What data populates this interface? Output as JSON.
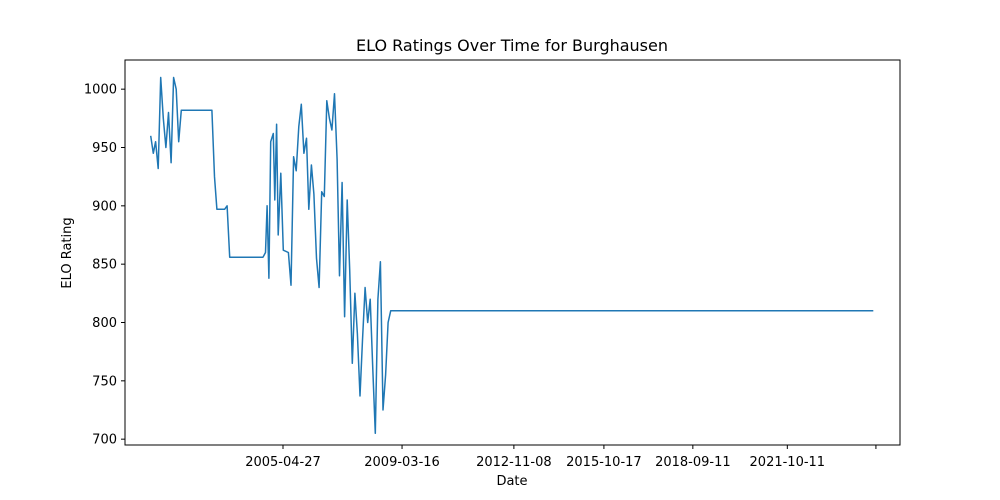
{
  "chart_data": {
    "type": "line",
    "title": "ELO Ratings Over Time for Burghausen",
    "xlabel": "Date",
    "ylabel": "ELO Rating",
    "x_ticks": [
      {
        "date": "2005-04-27",
        "label": "2005-04-27"
      },
      {
        "date": "2009-03-16",
        "label": "2009-03-16"
      },
      {
        "date": "2012-11-08",
        "label": "2012-11-08"
      },
      {
        "date": "2015-10-17",
        "label": "2015-10-17"
      },
      {
        "date": "2018-09-11",
        "label": "2018-09-11"
      },
      {
        "date": "2021-10-11",
        "label": "2021-10-11"
      },
      {
        "date": "2024-09-01",
        "label": ""
      }
    ],
    "y_ticks": [
      700,
      750,
      800,
      850,
      900,
      950,
      1000
    ],
    "xlim": [
      "2000-03-01",
      "2025-06-15"
    ],
    "ylim": [
      695,
      1025
    ],
    "grid": false,
    "colors": {
      "line": "#1f77b4"
    },
    "series": [
      {
        "color": "#1f77b4",
        "points": [
          [
            "2001-01-01",
            960
          ],
          [
            "2001-02-01",
            945
          ],
          [
            "2001-03-01",
            955
          ],
          [
            "2001-04-01",
            932
          ],
          [
            "2001-05-01",
            1010
          ],
          [
            "2001-06-01",
            975
          ],
          [
            "2001-07-01",
            950
          ],
          [
            "2001-08-01",
            980
          ],
          [
            "2001-09-01",
            937
          ],
          [
            "2001-10-01",
            1010
          ],
          [
            "2001-11-01",
            1000
          ],
          [
            "2001-12-01",
            955
          ],
          [
            "2002-01-01",
            982
          ],
          [
            "2002-06-01",
            982
          ],
          [
            "2002-10-01",
            982
          ],
          [
            "2003-01-01",
            982
          ],
          [
            "2003-02-01",
            925
          ],
          [
            "2003-03-01",
            897
          ],
          [
            "2003-06-01",
            897
          ],
          [
            "2003-07-01",
            900
          ],
          [
            "2003-08-01",
            856
          ],
          [
            "2004-09-01",
            856
          ],
          [
            "2004-10-01",
            860
          ],
          [
            "2004-10-20",
            900
          ],
          [
            "2004-11-10",
            838
          ],
          [
            "2004-12-01",
            955
          ],
          [
            "2005-01-01",
            962
          ],
          [
            "2005-01-20",
            905
          ],
          [
            "2005-02-10",
            970
          ],
          [
            "2005-03-01",
            875
          ],
          [
            "2005-04-01",
            928
          ],
          [
            "2005-05-01",
            862
          ],
          [
            "2005-07-01",
            860
          ],
          [
            "2005-08-01",
            832
          ],
          [
            "2005-09-01",
            942
          ],
          [
            "2005-10-01",
            930
          ],
          [
            "2005-11-01",
            968
          ],
          [
            "2005-12-01",
            987
          ],
          [
            "2006-01-01",
            945
          ],
          [
            "2006-02-01",
            958
          ],
          [
            "2006-03-01",
            897
          ],
          [
            "2006-04-01",
            935
          ],
          [
            "2006-05-01",
            910
          ],
          [
            "2006-06-01",
            855
          ],
          [
            "2006-07-01",
            830
          ],
          [
            "2006-08-01",
            912
          ],
          [
            "2006-09-01",
            908
          ],
          [
            "2006-10-01",
            990
          ],
          [
            "2006-11-01",
            975
          ],
          [
            "2006-12-01",
            965
          ],
          [
            "2007-01-01",
            996
          ],
          [
            "2007-02-01",
            940
          ],
          [
            "2007-03-01",
            840
          ],
          [
            "2007-04-01",
            920
          ],
          [
            "2007-05-01",
            805
          ],
          [
            "2007-06-01",
            905
          ],
          [
            "2007-07-01",
            845
          ],
          [
            "2007-08-01",
            765
          ],
          [
            "2007-09-01",
            825
          ],
          [
            "2007-10-01",
            790
          ],
          [
            "2007-11-01",
            737
          ],
          [
            "2007-12-01",
            785
          ],
          [
            "2008-01-01",
            830
          ],
          [
            "2008-02-01",
            800
          ],
          [
            "2008-03-01",
            820
          ],
          [
            "2008-04-01",
            760
          ],
          [
            "2008-05-01",
            705
          ],
          [
            "2008-06-01",
            820
          ],
          [
            "2008-07-01",
            852
          ],
          [
            "2008-08-01",
            725
          ],
          [
            "2008-09-01",
            755
          ],
          [
            "2008-10-01",
            800
          ],
          [
            "2008-11-01",
            810
          ],
          [
            "2024-08-01",
            810
          ]
        ]
      }
    ]
  }
}
